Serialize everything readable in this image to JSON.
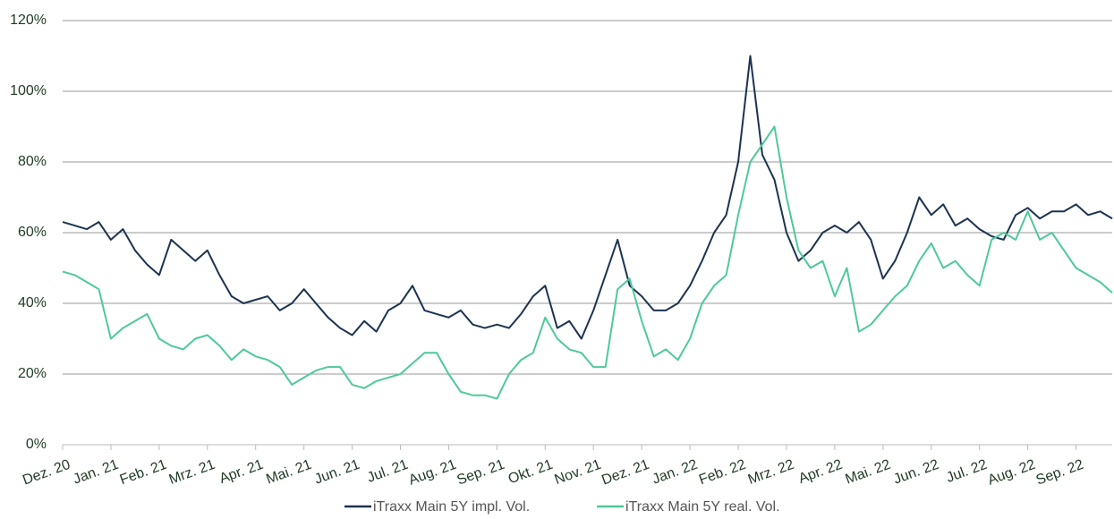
{
  "chart_data": {
    "type": "line",
    "categories": [
      "Dez. 20",
      null,
      null,
      null,
      "Jan. 21",
      null,
      null,
      null,
      "Feb. 21",
      null,
      null,
      null,
      "Mrz. 21",
      null,
      null,
      null,
      "Apr. 21",
      null,
      null,
      null,
      "Mai. 21",
      null,
      null,
      null,
      "Jun. 21",
      null,
      null,
      null,
      "Jul. 21",
      null,
      null,
      null,
      "Aug. 21",
      null,
      null,
      null,
      "Sep. 21",
      null,
      null,
      null,
      "Okt. 21",
      null,
      null,
      null,
      "Nov. 21",
      null,
      null,
      null,
      "Dez. 21",
      null,
      null,
      null,
      "Jan. 22",
      null,
      null,
      null,
      "Feb. 22",
      null,
      null,
      null,
      "Mrz. 22",
      null,
      null,
      null,
      "Apr. 22",
      null,
      null,
      null,
      "Mai. 22",
      null,
      null,
      null,
      "Jun. 22",
      null,
      null,
      null,
      "Jul. 22",
      null,
      null,
      null,
      "Aug. 22",
      null,
      null,
      null,
      "Sep. 22",
      null,
      null,
      null
    ],
    "series": [
      {
        "name": "iTraxx Main 5Y impl. Vol.",
        "color": "#1c3350",
        "values": [
          63,
          62,
          61,
          63,
          58,
          61,
          55,
          51,
          48,
          58,
          55,
          52,
          55,
          48,
          42,
          40,
          41,
          42,
          38,
          40,
          44,
          40,
          36,
          33,
          31,
          35,
          32,
          38,
          40,
          45,
          38,
          37,
          36,
          38,
          34,
          33,
          34,
          33,
          37,
          42,
          45,
          33,
          35,
          30,
          38,
          48,
          58,
          45,
          42,
          38,
          38,
          40,
          45,
          52,
          60,
          65,
          80,
          110,
          82,
          75,
          60,
          52,
          55,
          60,
          62,
          60,
          63,
          58,
          47,
          52,
          60,
          70,
          65,
          68,
          62,
          64,
          61,
          59,
          58,
          65,
          67,
          64,
          66,
          66,
          68,
          65,
          66,
          64
        ]
      },
      {
        "name": "iTraxx Main 5Y real. Vol.",
        "color": "#4ec99a",
        "values": [
          49,
          48,
          46,
          44,
          30,
          33,
          35,
          37,
          30,
          28,
          27,
          30,
          31,
          28,
          24,
          27,
          25,
          24,
          22,
          17,
          19,
          21,
          22,
          22,
          17,
          16,
          18,
          19,
          20,
          23,
          26,
          26,
          20,
          15,
          14,
          14,
          13,
          20,
          24,
          26,
          36,
          30,
          27,
          26,
          22,
          22,
          44,
          47,
          35,
          25,
          27,
          24,
          30,
          40,
          45,
          48,
          65,
          80,
          85,
          90,
          70,
          55,
          50,
          52,
          42,
          50,
          32,
          34,
          38,
          42,
          45,
          52,
          57,
          50,
          52,
          48,
          45,
          58,
          60,
          58,
          66,
          58,
          60,
          55,
          50,
          48,
          46,
          43
        ]
      }
    ],
    "ylim": [
      0,
      120
    ],
    "yticks": [
      {
        "value": 0,
        "label": "0%"
      },
      {
        "value": 20,
        "label": "20%"
      },
      {
        "value": 40,
        "label": "40%"
      },
      {
        "value": 60,
        "label": "60%"
      },
      {
        "value": 80,
        "label": "80%"
      },
      {
        "value": 100,
        "label": "100%"
      },
      {
        "value": 120,
        "label": "120%"
      }
    ],
    "grid": true,
    "legend": "bottom"
  }
}
